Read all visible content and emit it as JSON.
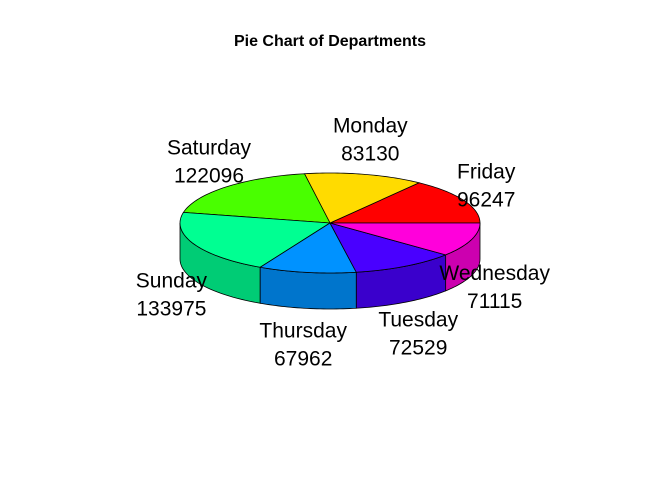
{
  "chart_data": {
    "type": "pie",
    "title": "Pie Chart of Departments",
    "categories": [
      "Friday",
      "Monday",
      "Saturday",
      "Sunday",
      "Thursday",
      "Tuesday",
      "Wednesday"
    ],
    "values": [
      96247,
      83130,
      122096,
      133975,
      67962,
      72529,
      71115
    ],
    "colors": [
      "#FF0000",
      "#FFDB00",
      "#49FF00",
      "#00FF92",
      "#0092FF",
      "#4900FF",
      "#FF00DB"
    ],
    "three_d": true
  }
}
